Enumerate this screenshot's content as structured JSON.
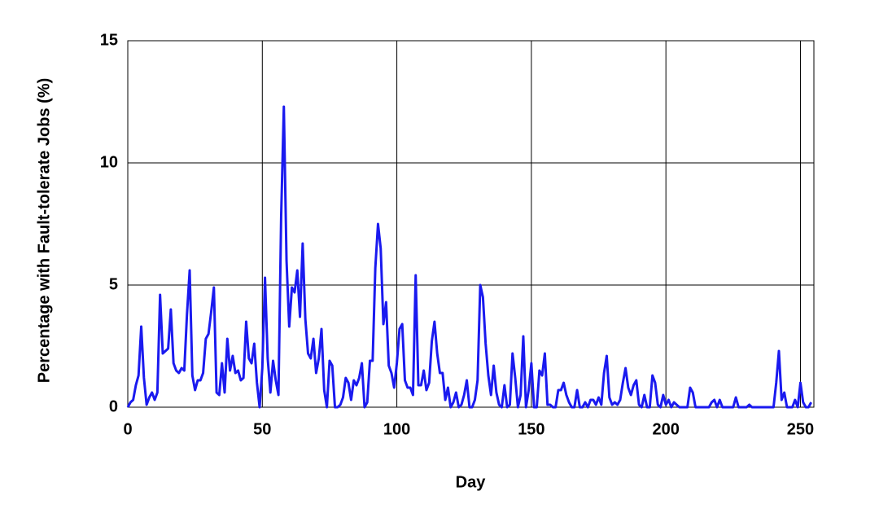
{
  "chart_data": {
    "type": "line",
    "xlabel": "Day",
    "ylabel": "Percentage with Fault-tolerate Jobs (%)",
    "x": [
      0,
      1,
      2,
      3,
      4,
      5,
      6,
      7,
      8,
      9,
      10,
      11,
      12,
      13,
      14,
      15,
      16,
      17,
      18,
      19,
      20,
      21,
      22,
      23,
      24,
      25,
      26,
      27,
      28,
      29,
      30,
      31,
      32,
      33,
      34,
      35,
      36,
      37,
      38,
      39,
      40,
      41,
      42,
      43,
      44,
      45,
      46,
      47,
      48,
      49,
      50,
      51,
      52,
      53,
      54,
      55,
      56,
      57,
      58,
      59,
      60,
      61,
      62,
      63,
      64,
      65,
      66,
      67,
      68,
      69,
      70,
      71,
      72,
      73,
      74,
      75,
      76,
      77,
      78,
      79,
      80,
      81,
      82,
      83,
      84,
      85,
      86,
      87,
      88,
      89,
      90,
      91,
      92,
      93,
      94,
      95,
      96,
      97,
      98,
      99,
      100,
      101,
      102,
      103,
      104,
      105,
      106,
      107,
      108,
      109,
      110,
      111,
      112,
      113,
      114,
      115,
      116,
      117,
      118,
      119,
      120,
      121,
      122,
      123,
      124,
      125,
      126,
      127,
      128,
      129,
      130,
      131,
      132,
      133,
      134,
      135,
      136,
      137,
      138,
      139,
      140,
      141,
      142,
      143,
      144,
      145,
      146,
      147,
      148,
      149,
      150,
      151,
      152,
      153,
      154,
      155,
      156,
      157,
      158,
      159,
      160,
      161,
      162,
      163,
      164,
      165,
      166,
      167,
      168,
      169,
      170,
      171,
      172,
      173,
      174,
      175,
      176,
      177,
      178,
      179,
      180,
      181,
      182,
      183,
      184,
      185,
      186,
      187,
      188,
      189,
      190,
      191,
      192,
      193,
      194,
      195,
      196,
      197,
      198,
      199,
      200,
      201,
      202,
      203,
      204,
      205,
      206,
      207,
      208,
      209,
      210,
      211,
      212,
      213,
      214,
      215,
      216,
      217,
      218,
      219,
      220,
      221,
      222,
      223,
      224,
      225,
      226,
      227,
      228,
      229,
      230,
      231,
      232,
      233,
      234,
      235,
      236,
      237,
      238,
      239,
      240,
      241,
      242,
      243,
      244,
      245,
      246,
      247,
      248,
      249,
      250,
      251,
      252,
      253,
      254
    ],
    "series": [
      {
        "color": "#1a1aef",
        "values": [
          0,
          0.2,
          0.3,
          0.9,
          1.3,
          3.3,
          1.2,
          0.1,
          0.4,
          0.6,
          0.3,
          0.6,
          4.6,
          2.2,
          2.3,
          2.4,
          4.0,
          1.8,
          1.5,
          1.4,
          1.6,
          1.5,
          3.8,
          5.6,
          1.3,
          0.7,
          1.1,
          1.1,
          1.4,
          2.8,
          3.0,
          3.9,
          4.9,
          0.6,
          0.5,
          1.8,
          0.6,
          2.8,
          1.5,
          2.1,
          1.4,
          1.5,
          1.1,
          1.2,
          3.5,
          2.0,
          1.8,
          2.6,
          1.0,
          0,
          1.6,
          5.3,
          2.0,
          0.6,
          1.9,
          1.1,
          0.5,
          7.8,
          12.3,
          6.0,
          3.3,
          4.9,
          4.7,
          5.6,
          3.7,
          6.7,
          3.6,
          2.2,
          2.0,
          2.8,
          1.4,
          2.0,
          3.2,
          0.7,
          0,
          1.9,
          1.7,
          0,
          0,
          0.1,
          0.4,
          1.2,
          1.0,
          0.3,
          1.1,
          0.9,
          1.2,
          1.8,
          0,
          0.2,
          1.9,
          1.9,
          5.7,
          7.5,
          6.5,
          3.4,
          4.3,
          1.7,
          1.4,
          0.8,
          1.8,
          3.2,
          3.4,
          1.1,
          0.8,
          0.8,
          0.5,
          5.4,
          0.9,
          0.9,
          1.5,
          0.7,
          1.0,
          2.7,
          3.5,
          2.2,
          1.4,
          1.4,
          0.3,
          0.8,
          0,
          0.2,
          0.6,
          0,
          0.1,
          0.5,
          1.1,
          0,
          0,
          0.3,
          1.1,
          5.0,
          4.5,
          2.6,
          1.3,
          0.5,
          1.7,
          0.6,
          0.1,
          0,
          0.9,
          0,
          0.1,
          2.2,
          1.2,
          0,
          0.5,
          2.9,
          0,
          0.7,
          1.8,
          0,
          0,
          1.5,
          1.3,
          2.2,
          0.1,
          0.1,
          0,
          0,
          0.7,
          0.7,
          1.0,
          0.5,
          0.2,
          0,
          0,
          0.7,
          0,
          0,
          0.2,
          0,
          0.3,
          0.3,
          0.1,
          0.4,
          0.1,
          1.4,
          2.1,
          0.4,
          0.1,
          0.2,
          0.1,
          0.3,
          1.0,
          1.6,
          0.8,
          0.5,
          0.9,
          1.1,
          0.1,
          0,
          0.5,
          0,
          0,
          1.3,
          1.0,
          0.1,
          0,
          0.5,
          0.1,
          0.3,
          0,
          0.2,
          0.1,
          0,
          0,
          0,
          0,
          0.8,
          0.6,
          0,
          0,
          0,
          0,
          0,
          0,
          0.2,
          0.3,
          0,
          0.3,
          0,
          0,
          0,
          0,
          0,
          0.4,
          0,
          0,
          0,
          0,
          0.1,
          0,
          0,
          0,
          0,
          0,
          0,
          0,
          0,
          0,
          1.0,
          2.3,
          0.3,
          0.6,
          0,
          0,
          0,
          0.3,
          0,
          1.0,
          0.2,
          0,
          0,
          0.2
        ]
      }
    ],
    "xlim": [
      0,
      255
    ],
    "xticks": [
      0,
      50,
      100,
      150,
      200,
      250
    ],
    "ylim": [
      0,
      15
    ],
    "yticks": [
      0,
      5,
      10,
      15
    ],
    "grid": true
  }
}
